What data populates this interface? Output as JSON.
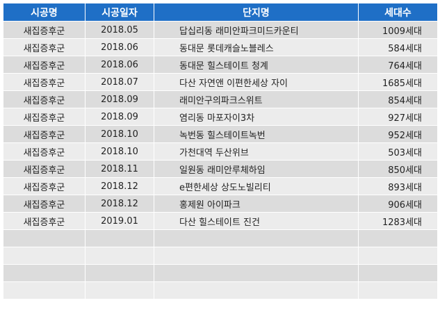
{
  "headers": {
    "builder": "시공명",
    "date": "시공일자",
    "complex": "단지명",
    "units": "세대수"
  },
  "rows": [
    {
      "builder": "새집증후군",
      "date": "2018.05",
      "complex": "답십리동 래미안파크미드카운티",
      "units": "1009세대"
    },
    {
      "builder": "새집증후군",
      "date": "2018.06",
      "complex": "동대문 롯데캐슬노블레스",
      "units": "584세대"
    },
    {
      "builder": "새집증후군",
      "date": "2018.06",
      "complex": "동대문 힐스테이트 청계",
      "units": "764세대"
    },
    {
      "builder": "새집증후군",
      "date": "2018.07",
      "complex": "다산 자연앤 이편한세상 자이",
      "units": "1685세대"
    },
    {
      "builder": "새집증후군",
      "date": "2018.09",
      "complex": "래미안구의파크스위트",
      "units": "854세대"
    },
    {
      "builder": "새집증후군",
      "date": "2018.09",
      "complex": "염리동 마포자이3차",
      "units": "927세대"
    },
    {
      "builder": "새집증후군",
      "date": "2018.10",
      "complex": "녹번동 힐스테이트녹번",
      "units": "952세대"
    },
    {
      "builder": "새집증후군",
      "date": "2018.10",
      "complex": "가천대역 두산위브",
      "units": "503세대"
    },
    {
      "builder": "새집증후군",
      "date": "2018.11",
      "complex": "일원동 래미안루체하임",
      "units": "850세대"
    },
    {
      "builder": "새집증후군",
      "date": "2018.12",
      "complex": "e편한세상 상도노빌리티",
      "units": "893세대"
    },
    {
      "builder": "새집증후군",
      "date": "2018.12",
      "complex": "홍제원 아이파크",
      "units": "906세대"
    },
    {
      "builder": "새집증후군",
      "date": "2019.01",
      "complex": "다산 힐스테이트 진건",
      "units": "1283세대"
    },
    {
      "builder": "",
      "date": "",
      "complex": "",
      "units": ""
    },
    {
      "builder": "",
      "date": "",
      "complex": "",
      "units": ""
    },
    {
      "builder": "",
      "date": "",
      "complex": "",
      "units": ""
    },
    {
      "builder": "",
      "date": "",
      "complex": "",
      "units": ""
    }
  ]
}
